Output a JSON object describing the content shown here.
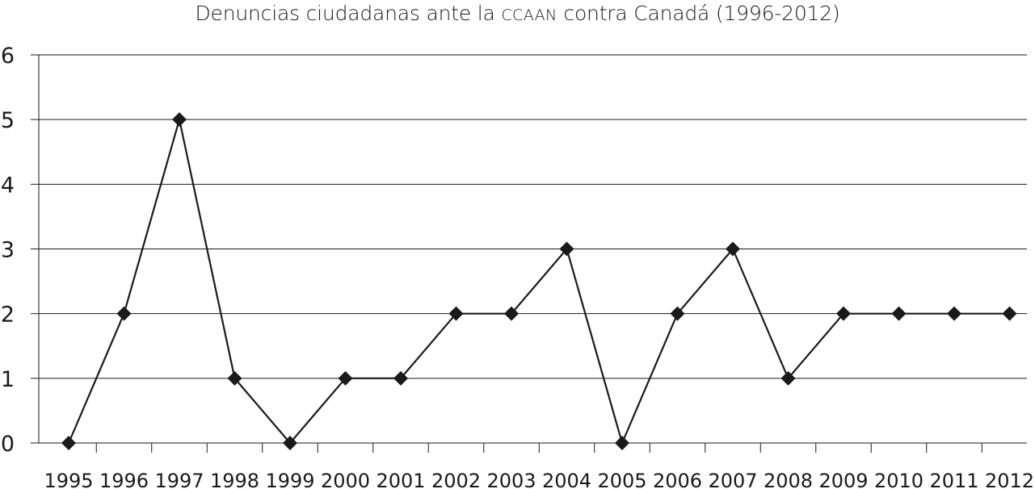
{
  "chart_data": {
    "type": "line",
    "title_parts": [
      "Denuncias ciudadanas ante la ",
      "CCAAN",
      " contra Canadá (1996-2012)"
    ],
    "xlabel": "",
    "ylabel": "",
    "categories": [
      "1995",
      "1996",
      "1997",
      "1998",
      "1999",
      "2000",
      "2001",
      "2002",
      "2003",
      "2004",
      "2005",
      "2006",
      "2007",
      "2008",
      "2009",
      "2010",
      "2011",
      "2012"
    ],
    "series": [
      {
        "values": [
          0,
          2,
          5,
          1,
          0,
          1,
          1,
          2,
          2,
          3,
          0,
          2,
          3,
          1,
          2,
          2,
          2,
          2
        ]
      }
    ],
    "ylim": [
      0,
      6
    ],
    "yticks": [
      0,
      1,
      2,
      3,
      4,
      5,
      6
    ],
    "grid": true,
    "line_color": "#1a1a1a",
    "marker": "diamond"
  }
}
